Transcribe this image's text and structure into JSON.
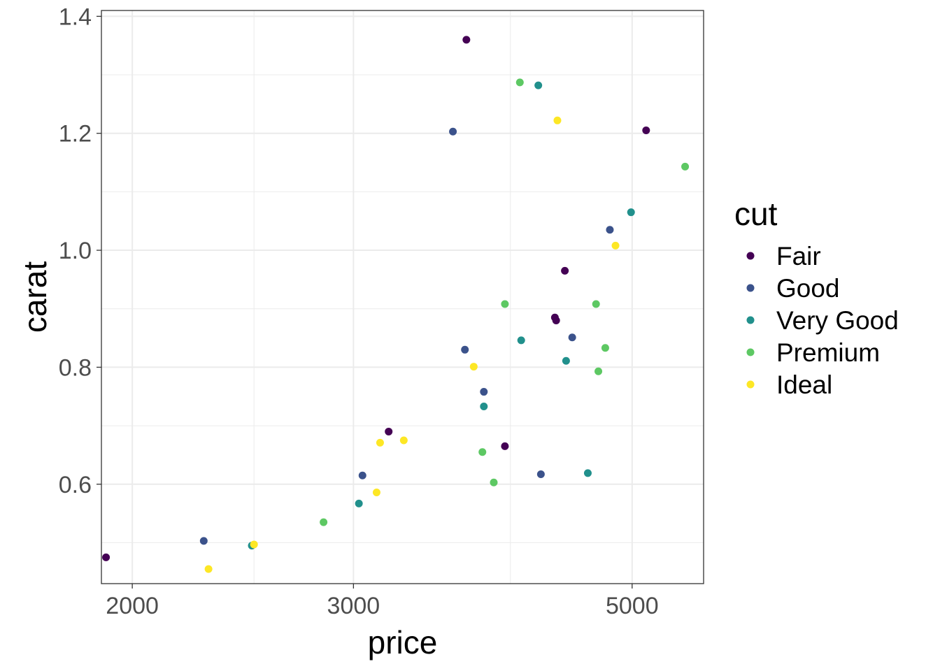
{
  "chart_data": {
    "type": "scatter",
    "title": "",
    "xlabel": "price",
    "ylabel": "carat",
    "x_scale": "log10",
    "xlim": [
      1890,
      5700
    ],
    "ylim": [
      0.43,
      1.41
    ],
    "x_ticks": [
      2000,
      3000,
      5000
    ],
    "x_tick_labels": [
      "2000",
      "3000",
      "5000"
    ],
    "x_minor_ticks": [
      2500,
      4000
    ],
    "y_ticks": [
      0.6,
      0.8,
      1.0,
      1.2,
      1.4
    ],
    "y_tick_labels": [
      "0.6",
      "0.8",
      "1.0",
      "1.2",
      "1.4"
    ],
    "y_minor_ticks": [
      0.5,
      0.7,
      0.9,
      1.1,
      1.3
    ],
    "grid": true,
    "legend": {
      "title": "cut",
      "position": "right",
      "entries": [
        "Fair",
        "Good",
        "Very Good",
        "Premium",
        "Ideal"
      ]
    },
    "colors": {
      "Fair": "#440154",
      "Good": "#3B528B",
      "Very Good": "#21908C",
      "Premium": "#5DC863",
      "Ideal": "#FDE725"
    },
    "series": [
      {
        "name": "Fair",
        "points": [
          {
            "x": 1906,
            "y": 0.475
          },
          {
            "x": 3200,
            "y": 0.69
          },
          {
            "x": 3690,
            "y": 1.36
          },
          {
            "x": 3960,
            "y": 0.665
          },
          {
            "x": 4350,
            "y": 0.88
          },
          {
            "x": 4340,
            "y": 0.885
          },
          {
            "x": 4420,
            "y": 0.965
          },
          {
            "x": 5130,
            "y": 1.205
          }
        ]
      },
      {
        "name": "Good",
        "points": [
          {
            "x": 2280,
            "y": 0.503
          },
          {
            "x": 3050,
            "y": 0.615
          },
          {
            "x": 3600,
            "y": 1.203
          },
          {
            "x": 3680,
            "y": 0.83
          },
          {
            "x": 3810,
            "y": 0.758
          },
          {
            "x": 4230,
            "y": 0.617
          },
          {
            "x": 4480,
            "y": 0.851
          },
          {
            "x": 4800,
            "y": 1.035
          }
        ]
      },
      {
        "name": "Very Good",
        "points": [
          {
            "x": 2490,
            "y": 0.495
          },
          {
            "x": 3030,
            "y": 0.567
          },
          {
            "x": 3810,
            "y": 0.733
          },
          {
            "x": 4080,
            "y": 0.846
          },
          {
            "x": 4210,
            "y": 1.282
          },
          {
            "x": 4430,
            "y": 0.811
          },
          {
            "x": 4610,
            "y": 0.619
          },
          {
            "x": 4990,
            "y": 1.065
          }
        ]
      },
      {
        "name": "Premium",
        "points": [
          {
            "x": 2840,
            "y": 0.535
          },
          {
            "x": 3800,
            "y": 0.655
          },
          {
            "x": 3880,
            "y": 0.603
          },
          {
            "x": 3960,
            "y": 0.908
          },
          {
            "x": 4070,
            "y": 1.287
          },
          {
            "x": 4680,
            "y": 0.908
          },
          {
            "x": 4700,
            "y": 0.793
          },
          {
            "x": 4760,
            "y": 0.833
          },
          {
            "x": 5510,
            "y": 1.143
          }
        ]
      },
      {
        "name": "Ideal",
        "points": [
          {
            "x": 2300,
            "y": 0.455
          },
          {
            "x": 2500,
            "y": 0.497
          },
          {
            "x": 3130,
            "y": 0.586
          },
          {
            "x": 3150,
            "y": 0.671
          },
          {
            "x": 3290,
            "y": 0.675
          },
          {
            "x": 3740,
            "y": 0.801
          },
          {
            "x": 4360,
            "y": 1.222
          },
          {
            "x": 4850,
            "y": 1.008
          }
        ]
      }
    ]
  }
}
